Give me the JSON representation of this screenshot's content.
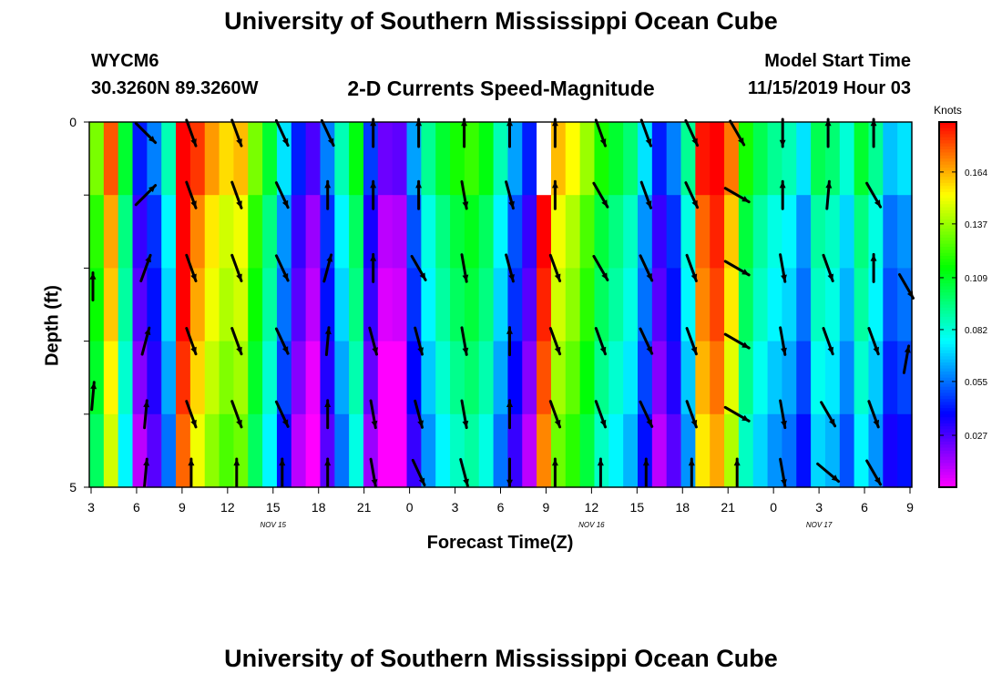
{
  "page": {
    "title_top": "University of Southern Mississippi Ocean Cube",
    "title_bottom": "University of Southern Mississippi Ocean Cube",
    "station": "WYCM6",
    "coords": "30.3260N 89.3260W",
    "subtitle": "2-D Currents Speed-Magnitude",
    "model_start_label": "Model Start Time",
    "model_start_value": "11/15/2019 Hour 03"
  },
  "chart_data": {
    "type": "heatmap",
    "title": "2-D Currents Speed-Magnitude",
    "xlabel": "Forecast Time(Z)",
    "ylabel": "Depth (ft)",
    "ylim": [
      0,
      5
    ],
    "y_ticks": [
      "0",
      "5"
    ],
    "x_ticks": [
      "3",
      "6",
      "9",
      "12",
      "15",
      "18",
      "21",
      "0",
      "3",
      "6",
      "9",
      "12",
      "15",
      "18",
      "21",
      "0",
      "3",
      "6",
      "9"
    ],
    "date_labels": [
      {
        "text": "NOV 15",
        "at_tick": 4
      },
      {
        "text": "NOV 16",
        "at_tick": 11
      },
      {
        "text": "NOV 17",
        "at_tick": 16
      }
    ],
    "colorbar": {
      "unit": "Knots",
      "min": 0.0,
      "max": 0.19,
      "ticks": [
        0.027,
        0.055,
        0.082,
        0.109,
        0.137,
        0.164
      ]
    },
    "grid": false,
    "rows": 5,
    "missing_cells": [
      [
        0,
        31
      ]
    ],
    "column_speeds": [
      0.12,
      0.165,
      0.095,
      0.03,
      0.045,
      0.075,
      0.195,
      0.17,
      0.155,
      0.145,
      0.15,
      0.12,
      0.095,
      0.06,
      0.03,
      0.015,
      0.045,
      0.075,
      0.1,
      0.035,
      0.01,
      0.012,
      0.05,
      0.08,
      0.095,
      0.105,
      0.11,
      0.1,
      0.075,
      0.05,
      0.03,
      0.19,
      0.15,
      0.14,
      0.125,
      0.105,
      0.095,
      0.085,
      0.06,
      0.03,
      0.045,
      0.08,
      0.175,
      0.185,
      0.16,
      0.105,
      0.09,
      0.08,
      0.075,
      0.06,
      0.09,
      0.085,
      0.07,
      0.095,
      0.08,
      0.055,
      0.06
    ],
    "row_speed_offsets": [
      0.012,
      0.0,
      -0.005,
      -0.012,
      -0.02
    ],
    "arrow_columns": [
      6,
      9,
      12,
      15,
      18,
      21,
      0,
      3,
      6,
      9,
      12,
      15,
      18,
      21,
      0,
      3,
      6
    ],
    "arrow_directions_deg": [
      [
        135,
        160,
        160,
        155,
        155,
        0,
        0,
        0,
        0,
        0,
        160,
        160,
        155,
        150,
        180,
        0,
        0
      ],
      [
        45,
        160,
        160,
        155,
        0,
        0,
        0,
        170,
        165,
        0,
        150,
        160,
        155,
        120,
        0,
        5,
        150
      ],
      [
        20,
        160,
        160,
        155,
        15,
        0,
        150,
        170,
        165,
        160,
        150,
        155,
        160,
        120,
        170,
        160,
        0
      ],
      [
        15,
        160,
        160,
        155,
        5,
        165,
        165,
        170,
        0,
        160,
        160,
        155,
        160,
        120,
        170,
        160,
        160
      ],
      [
        5,
        160,
        160,
        155,
        0,
        170,
        165,
        170,
        0,
        160,
        160,
        155,
        160,
        120,
        170,
        150,
        160
      ],
      [
        5,
        0,
        0,
        0,
        0,
        170,
        155,
        165,
        180,
        0,
        0,
        0,
        0,
        0,
        170,
        130,
        150
      ]
    ],
    "arrow_edge_extra": [
      {
        "x_tick": 0,
        "row": 2.25,
        "dir_deg": 0
      },
      {
        "x_tick": 0,
        "row": 3.75,
        "dir_deg": 5
      },
      {
        "x_tick": 18,
        "row": 2.25,
        "dir_deg": 150
      },
      {
        "x_tick": 18,
        "row": 3.25,
        "dir_deg": 10
      }
    ]
  }
}
